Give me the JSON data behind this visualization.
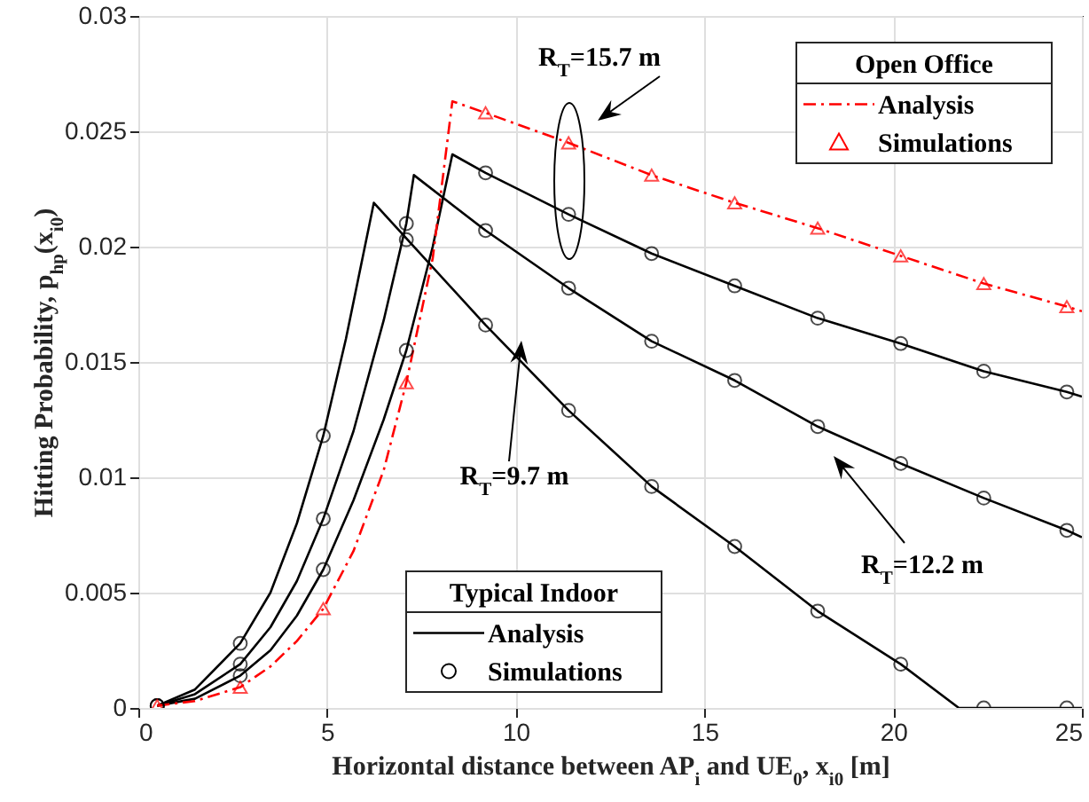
{
  "chart_data": {
    "type": "line",
    "xlabel": "Horizontal distance between AP$_{i}$ and UE$_{0}$, x$_{i0}$ [m]",
    "ylabel": "Hitting Probability, p$_{hp}$(x$_{i0}$)",
    "xlim": [
      0,
      25
    ],
    "xticks": [
      0,
      5,
      10,
      15,
      20,
      25
    ],
    "ylim": [
      0,
      0.03
    ],
    "yticks": [
      0,
      0.005,
      0.01,
      0.015,
      0.02,
      0.025,
      0.03
    ],
    "grid": true,
    "legend": [
      "bottom",
      "top right"
    ],
    "annotations": [
      "Typical Indoor",
      "Open Office",
      "R$_{T}$=15.7 m",
      "R$_{T}$=9.7 m",
      "R$_{T}$=12.2 m"
    ],
    "series": [
      {
        "name": "Analysis",
        "type": "line",
        "color": "#000000",
        "line_style": "solid",
        "marker": "none",
        "x": [
          0.5,
          1.5,
          2.7,
          3.5,
          4.2,
          4.9,
          5.5,
          6.24,
          9.2,
          11.4,
          13.6,
          15.8,
          18,
          20.2,
          21.74,
          25
        ],
        "values": [
          0.0001,
          0.0008,
          0.0028,
          0.005,
          0.008,
          0.0118,
          0.016,
          0.0219,
          0.0166,
          0.0129,
          0.0096,
          0.007,
          0.0042,
          0.0019,
          0,
          0
        ]
      },
      {
        "type": "line",
        "color": "#000000",
        "line_style": "solid",
        "marker": "none",
        "x": [
          0.5,
          1.5,
          2.7,
          3.5,
          4.2,
          4.9,
          5.7,
          6.5,
          7.1,
          7.3,
          9.2,
          11.4,
          13.6,
          15.8,
          18,
          20.2,
          22.4,
          24.6,
          25
        ],
        "values": [
          0.0001,
          0.0006,
          0.0019,
          0.0035,
          0.0055,
          0.0082,
          0.012,
          0.0168,
          0.021,
          0.0231,
          0.0207,
          0.0182,
          0.0159,
          0.0142,
          0.0122,
          0.0106,
          0.0091,
          0.0077,
          0.0074
        ]
      },
      {
        "type": "line",
        "color": "#000000",
        "line_style": "solid",
        "marker": "none",
        "x": [
          0.5,
          1.5,
          2.7,
          3.5,
          4.2,
          4.9,
          5.7,
          6.5,
          7.1,
          7.8,
          8.32,
          9.2,
          11.4,
          13.6,
          15.8,
          18,
          20.2,
          22.4,
          24.6,
          25
        ],
        "values": [
          0.0001,
          0.0004,
          0.0014,
          0.0025,
          0.004,
          0.006,
          0.009,
          0.0125,
          0.0155,
          0.02,
          0.024,
          0.0232,
          0.0214,
          0.0197,
          0.0183,
          0.0169,
          0.0158,
          0.0146,
          0.0137,
          0.0135
        ]
      },
      {
        "name": "Analysis",
        "type": "line",
        "color": "#ff0000",
        "line_style": "dashed",
        "marker": "none",
        "x": [
          0.5,
          1.5,
          2.7,
          3.5,
          4.2,
          4.9,
          5.7,
          6.5,
          7.1,
          7.8,
          8.32,
          9.2,
          11.4,
          13.6,
          15.8,
          18,
          20.2,
          22.4,
          24.6,
          25
        ],
        "values": [
          0.0001,
          0.0003,
          0.0009,
          0.0018,
          0.0029,
          0.0043,
          0.0068,
          0.0103,
          0.0141,
          0.0195,
          0.0263,
          0.0258,
          0.0245,
          0.0231,
          0.0219,
          0.0208,
          0.0196,
          0.0184,
          0.0174,
          0.0172
        ]
      },
      {
        "name": "Simulations",
        "type": "scatter",
        "color": "#000000",
        "marker": "circle",
        "x": [
          0.5,
          2.7,
          4.9,
          7.1,
          9.2,
          11.4,
          13.6,
          15.8,
          18,
          20.2,
          22.4,
          24.6
        ],
        "values": [
          0.0001,
          0.0028,
          0.0118,
          0.0203,
          0.0166,
          0.0129,
          0.0096,
          0.007,
          0.0042,
          0.0019,
          0,
          0
        ]
      },
      {
        "type": "scatter",
        "color": "#000000",
        "marker": "circle",
        "x": [
          0.5,
          2.7,
          4.9,
          7.1,
          9.2,
          11.4,
          13.6,
          15.8,
          18,
          20.2,
          22.4,
          24.6
        ],
        "values": [
          0.0001,
          0.0019,
          0.0082,
          0.021,
          0.0207,
          0.0182,
          0.0159,
          0.0142,
          0.0122,
          0.0106,
          0.0091,
          0.0077
        ]
      },
      {
        "type": "scatter",
        "color": "#000000",
        "marker": "circle",
        "x": [
          0.5,
          2.7,
          4.9,
          7.1,
          9.2,
          11.4,
          13.6,
          15.8,
          18,
          20.2,
          22.4,
          24.6
        ],
        "values": [
          0.0001,
          0.0014,
          0.006,
          0.0155,
          0.0232,
          0.0214,
          0.0197,
          0.0183,
          0.0169,
          0.0158,
          0.0146,
          0.0137
        ]
      },
      {
        "name": "Simulations",
        "type": "scatter",
        "color": "#ff0000",
        "marker": "triangle",
        "x": [
          0.5,
          2.7,
          4.9,
          7.1,
          9.2,
          11.4,
          13.6,
          15.8,
          18,
          20.2,
          22.4,
          24.6
        ],
        "values": [
          0.0001,
          0.0009,
          0.0043,
          0.0141,
          0.0258,
          0.0245,
          0.0231,
          0.0219,
          0.0208,
          0.0196,
          0.0184,
          0.0174
        ]
      }
    ]
  }
}
